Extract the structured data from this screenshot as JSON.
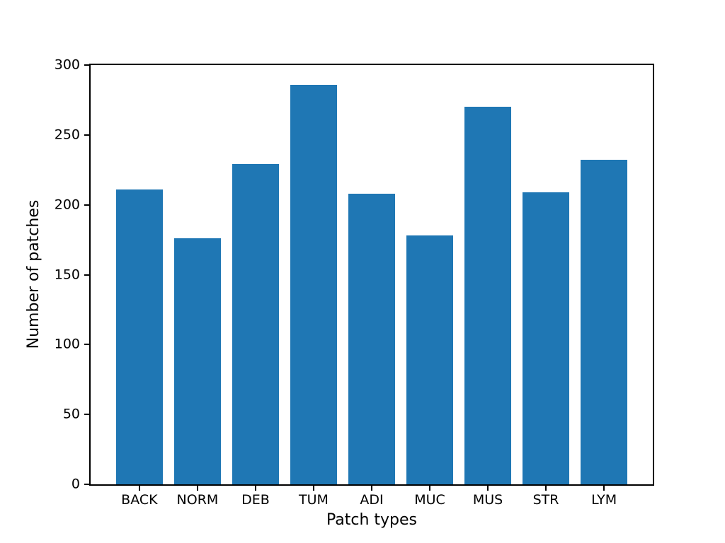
{
  "figure": {
    "background": "#ffffff"
  },
  "chart_data": {
    "type": "bar",
    "title": "",
    "categories": [
      "BACK",
      "NORM",
      "DEB",
      "TUM",
      "ADI",
      "MUC",
      "MUS",
      "STR",
      "LYM"
    ],
    "values": [
      211,
      176,
      229,
      286,
      208,
      178,
      270,
      209,
      232
    ],
    "xlabel": "Patch types",
    "ylabel": "Number of patches",
    "ylim": [
      0,
      300
    ],
    "yticks": [
      0,
      50,
      100,
      150,
      200,
      250,
      300
    ],
    "bar_color": "#1f77b4",
    "axis_color": "#000000",
    "text_color": "#000000",
    "grid": false,
    "legend": null,
    "bar_width_fraction": 0.8,
    "x_units_span": 9.68,
    "first_bar_center_offset": 0.84
  }
}
